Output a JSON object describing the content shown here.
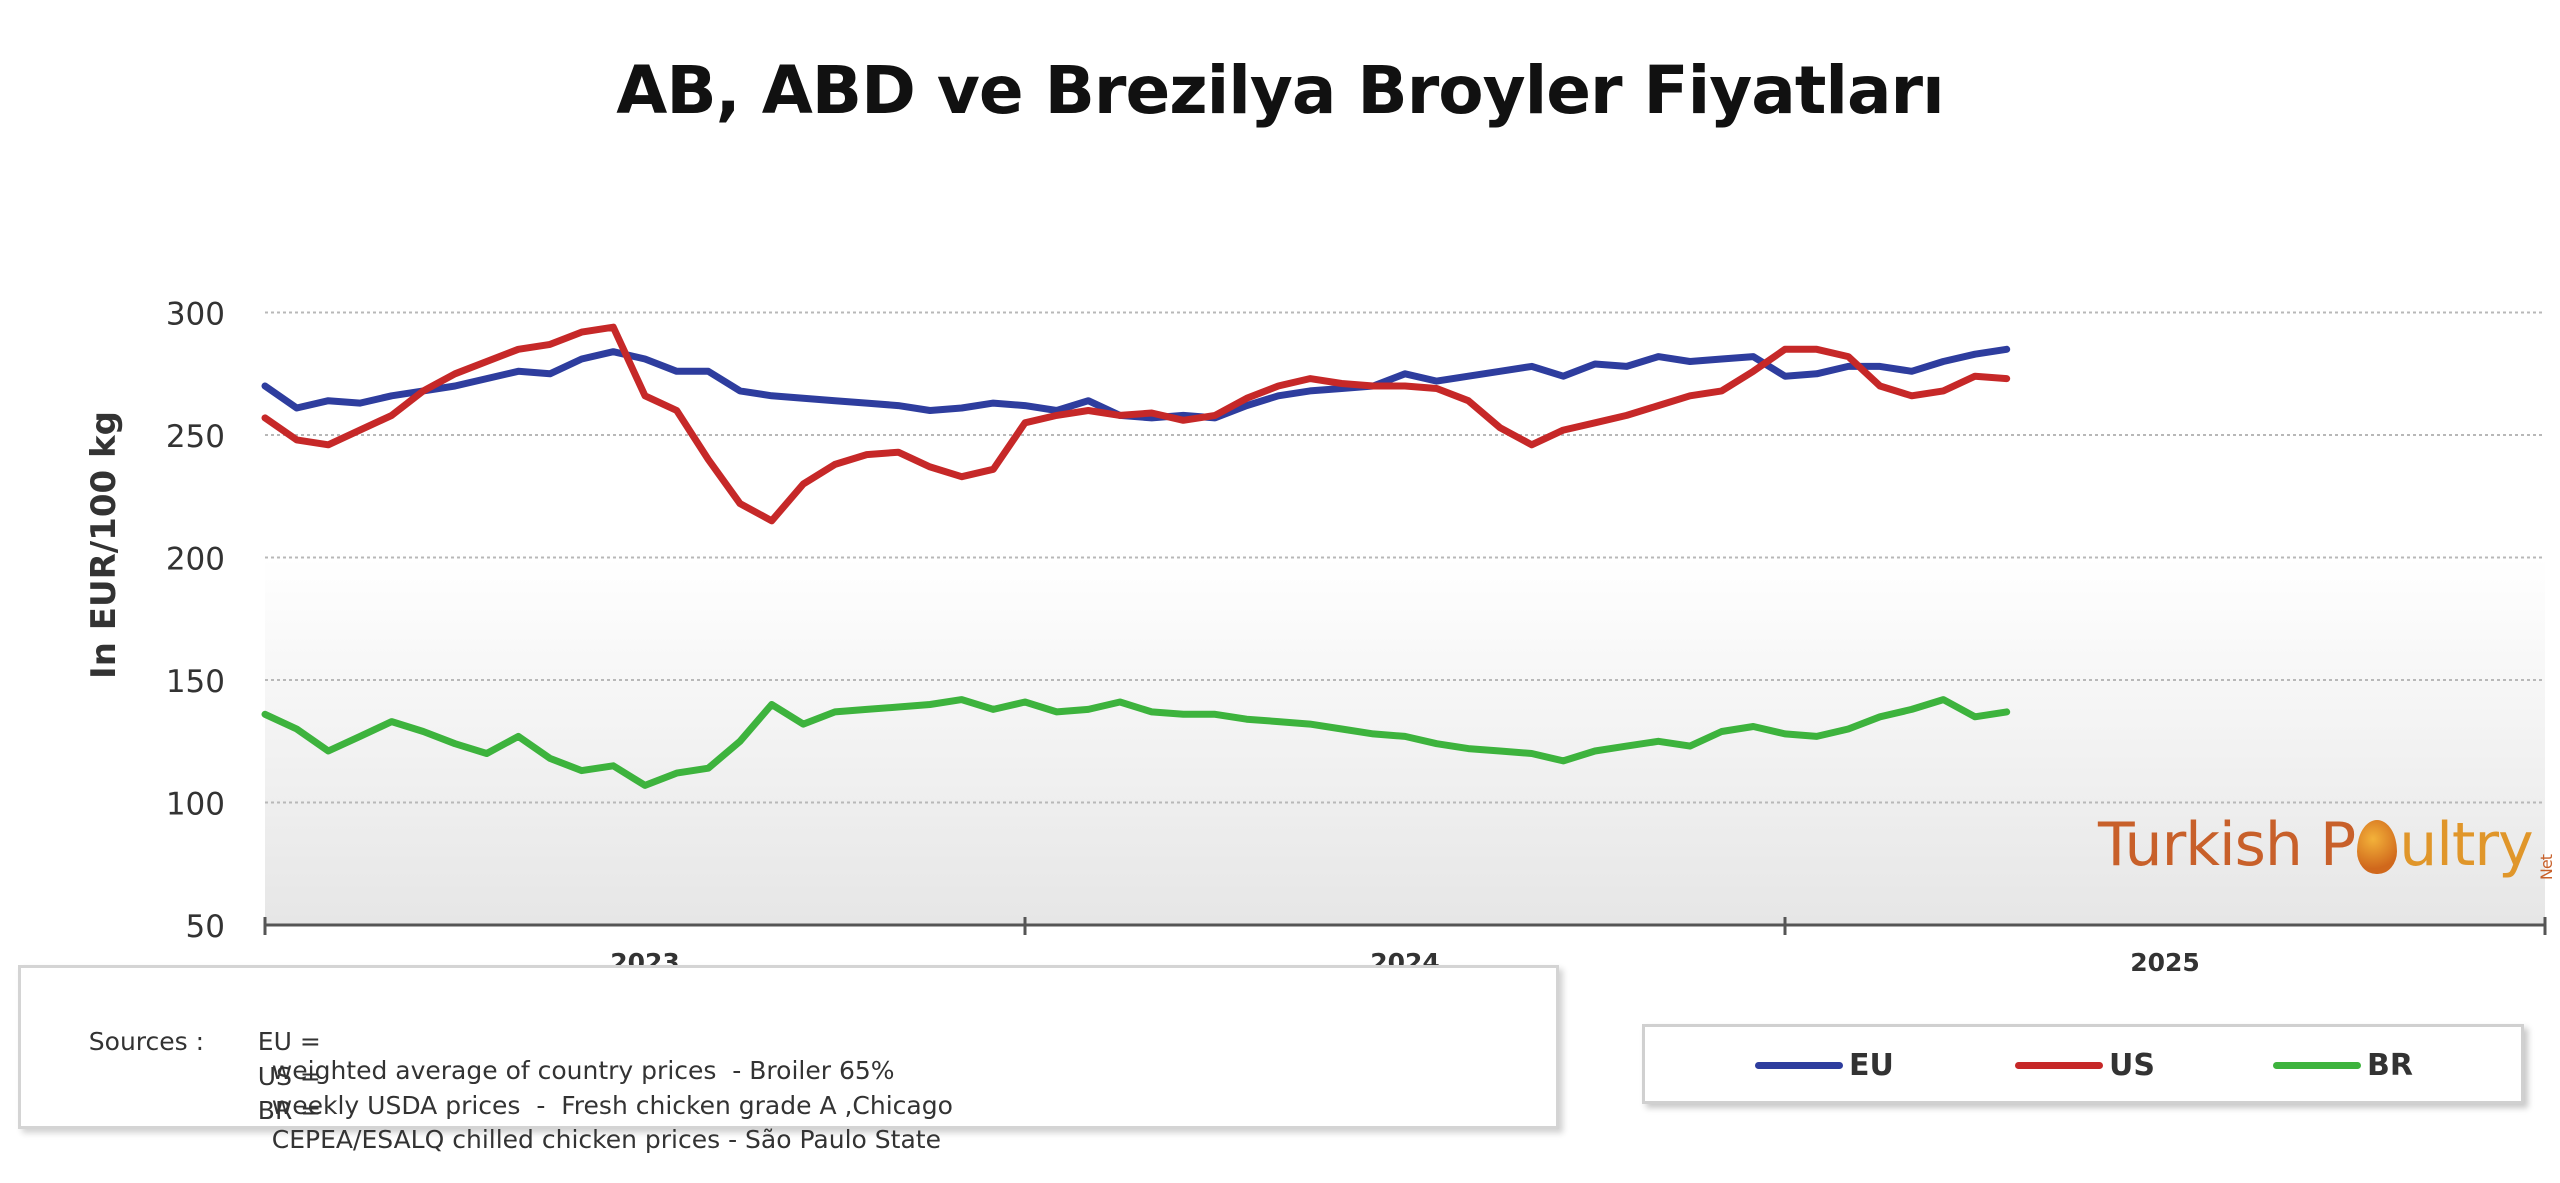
{
  "title": "AB, ABD ve Brezilya Broyler Fiyatları",
  "brand": {
    "part1": "Turkish P",
    "part2": "ultry",
    "suffix": "Net",
    "logo": "egg-chick-icon"
  },
  "sources": {
    "lines": [
      {
        "label": "Sources :",
        "key": "EU =",
        "text": "weighted average of country prices  - Broiler 65%"
      },
      {
        "label": "",
        "key": "US =",
        "text": "weekly USDA prices  -  Fresh chicken grade A ,Chicago"
      },
      {
        "label": "",
        "key": "BR =",
        "text": "CEPEA/ESALQ chilled chicken prices - São Paulo State"
      }
    ]
  },
  "legend": [
    {
      "name": "EU",
      "color": "#2e3d9e"
    },
    {
      "name": "US",
      "color": "#c62828"
    },
    {
      "name": "BR",
      "color": "#3db33d"
    }
  ],
  "chart_data": {
    "type": "line",
    "title": "",
    "ylabel": "In EUR/100 kg",
    "xlabel": "",
    "ylim": [
      50,
      350
    ],
    "yticks": [
      50,
      100,
      150,
      200,
      250,
      300
    ],
    "x_unit": "months since Jul 2022",
    "xlim": [
      0,
      36
    ],
    "year_labels": [
      {
        "label": "2023",
        "x": 6
      },
      {
        "label": "2024",
        "x": 18
      },
      {
        "label": "2025",
        "x": 30
      }
    ],
    "year_boundaries": [
      12,
      24
    ],
    "grid": true,
    "series": [
      {
        "name": "EU",
        "color": "#2e3d9e",
        "x": [
          0,
          0.5,
          1,
          1.5,
          2,
          2.5,
          3,
          3.5,
          4,
          4.5,
          5,
          5.5,
          6,
          6.5,
          7,
          7.5,
          8,
          8.5,
          9,
          9.5,
          10,
          10.5,
          11,
          11.5,
          12,
          12.5,
          13,
          13.5,
          14,
          14.5,
          15,
          15.5,
          16,
          16.5,
          17,
          17.5,
          18,
          18.5,
          19,
          19.5,
          20,
          20.5,
          21,
          21.5,
          22,
          22.5,
          23,
          23.5,
          24,
          24.5,
          25,
          25.5,
          26,
          26.5,
          27,
          27.5
        ],
        "values": [
          270,
          261,
          264,
          263,
          266,
          268,
          270,
          273,
          276,
          275,
          281,
          284,
          281,
          276,
          276,
          268,
          266,
          265,
          264,
          263,
          262,
          260,
          261,
          263,
          262,
          260,
          264,
          258,
          257,
          258,
          257,
          262,
          266,
          268,
          269,
          270,
          275,
          272,
          274,
          276,
          278,
          274,
          279,
          278,
          282,
          280,
          281,
          282,
          274,
          275,
          278,
          278,
          276,
          280,
          283,
          285
        ]
      },
      {
        "name": "US",
        "color": "#c62828",
        "x": [
          0,
          0.5,
          1,
          1.5,
          2,
          2.5,
          3,
          3.5,
          4,
          4.5,
          5,
          5.5,
          6,
          6.5,
          7,
          7.5,
          8,
          8.5,
          9,
          9.5,
          10,
          10.5,
          11,
          11.5,
          12,
          12.5,
          13,
          13.5,
          14,
          14.5,
          15,
          15.5,
          16,
          16.5,
          17,
          17.5,
          18,
          18.5,
          19,
          19.5,
          20,
          20.5,
          21,
          21.5,
          22,
          22.5,
          23,
          23.5,
          24,
          24.5,
          25,
          25.5,
          26,
          26.5,
          27,
          27.5
        ],
        "values": [
          257,
          248,
          246,
          252,
          258,
          268,
          275,
          280,
          285,
          287,
          292,
          294,
          266,
          260,
          240,
          222,
          215,
          230,
          238,
          242,
          243,
          237,
          233,
          236,
          255,
          258,
          260,
          258,
          259,
          256,
          258,
          265,
          270,
          273,
          271,
          270,
          270,
          269,
          264,
          253,
          246,
          252,
          255,
          258,
          262,
          266,
          268,
          276,
          285,
          285,
          282,
          270,
          266,
          268,
          274,
          273
        ]
      },
      {
        "name": "BR",
        "color": "#3db33d",
        "x": [
          0,
          0.5,
          1,
          1.5,
          2,
          2.5,
          3,
          3.5,
          4,
          4.5,
          5,
          5.5,
          6,
          6.5,
          7,
          7.5,
          8,
          8.5,
          9,
          9.5,
          10,
          10.5,
          11,
          11.5,
          12,
          12.5,
          13,
          13.5,
          14,
          14.5,
          15,
          15.5,
          16,
          16.5,
          17,
          17.5,
          18,
          18.5,
          19,
          19.5,
          20,
          20.5,
          21,
          21.5,
          22,
          22.5,
          23,
          23.5,
          24,
          24.5,
          25,
          25.5,
          26,
          26.5,
          27,
          27.5
        ],
        "values": [
          136,
          130,
          121,
          127,
          133,
          129,
          124,
          120,
          127,
          118,
          113,
          115,
          107,
          112,
          114,
          125,
          140,
          132,
          137,
          138,
          139,
          140,
          142,
          138,
          141,
          137,
          138,
          141,
          137,
          136,
          136,
          134,
          133,
          132,
          130,
          128,
          127,
          124,
          122,
          121,
          120,
          117,
          121,
          123,
          125,
          123,
          129,
          131,
          128,
          127,
          130,
          135,
          138,
          142,
          135,
          137
        ]
      }
    ]
  }
}
